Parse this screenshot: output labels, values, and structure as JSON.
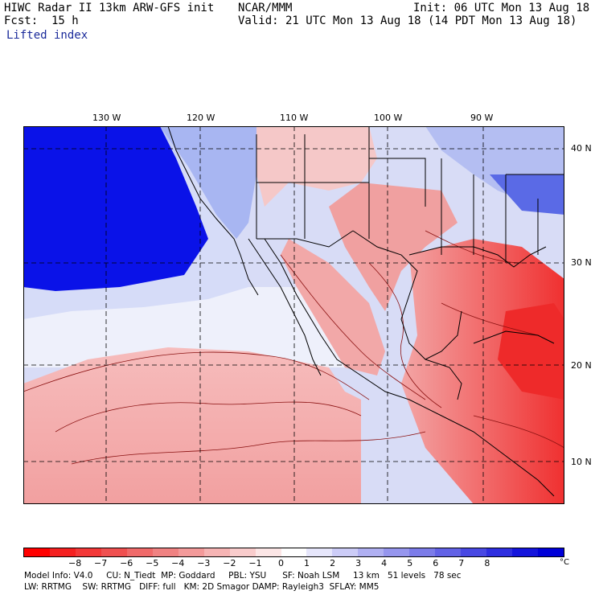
{
  "header": {
    "title_left": "HIWC Radar II 13km ARW-GFS init",
    "source": "NCAR/MMM",
    "init": "Init: 06 UTC Mon 13 Aug 18",
    "fcst_label": "Fcst:",
    "fcst_value": "15 h",
    "valid": "Valid: 21 UTC Mon 13 Aug 18 (14 PDT Mon 13 Aug 18)",
    "field": "Lifted index"
  },
  "map": {
    "lon_labels": [
      "130 W",
      "120 W",
      "110 W",
      "100 W",
      "90 W"
    ],
    "lat_labels": [
      "40 N",
      "30 N",
      "20 N",
      "10 N"
    ],
    "ocean_color": "#0a1ee6",
    "land_color": "#f4a9a9"
  },
  "colorbar": {
    "colors": [
      "#ff0000",
      "#f52020",
      "#f33838",
      "#f05050",
      "#f06a6a",
      "#f08282",
      "#f39a9a",
      "#f6b4b4",
      "#f9cccc",
      "#fce6e6",
      "#ffffff",
      "#e6e6fb",
      "#ccccf7",
      "#b0b0f2",
      "#9696ee",
      "#7c7ce9",
      "#6262e6",
      "#4848e3",
      "#2e2ee0",
      "#1414dc",
      "#0000d8"
    ],
    "tick_labels": [
      "−8",
      "−7",
      "−6",
      "−5",
      "−4",
      "−3",
      "−2",
      "−1",
      "0",
      "1",
      "2",
      "3",
      "4",
      "5",
      "6",
      "7",
      "8"
    ],
    "unit": "°C"
  },
  "footer": {
    "line1": "Model Info: V4.0     CU: N_Tiedt  MP: Goddard     PBL: YSU      SF: Noah LSM     13 km   51 levels   78 sec",
    "line2": "LW: RRTMG    SW: RRTMG   DIFF: full   KM: 2D Smagor DAMP: Rayleigh3  SFLAY: MM5"
  }
}
